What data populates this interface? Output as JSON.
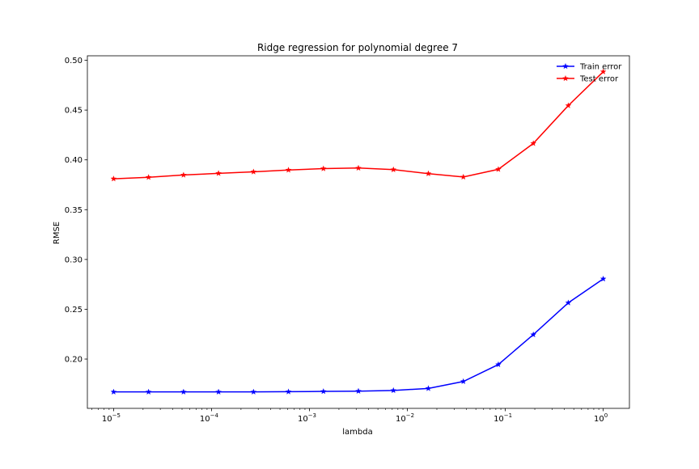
{
  "chart_data": {
    "type": "line",
    "title": "Ridge regression for polynomial degree 7",
    "xlabel": "lambda",
    "ylabel": "RMSE",
    "xscale": "log",
    "xlim": [
      5.4e-06,
      1.85
    ],
    "ylim": [
      0.1505,
      0.5045
    ],
    "grid": false,
    "legend_position": "top-right",
    "x_ticks": [
      {
        "value": 1e-05,
        "base": "10",
        "exp": "−5"
      },
      {
        "value": 0.0001,
        "base": "10",
        "exp": "−4"
      },
      {
        "value": 0.001,
        "base": "10",
        "exp": "−3"
      },
      {
        "value": 0.01,
        "base": "10",
        "exp": "−2"
      },
      {
        "value": 0.1,
        "base": "10",
        "exp": "−1"
      },
      {
        "value": 1,
        "base": "10",
        "exp": "0"
      }
    ],
    "y_ticks": [
      {
        "value": 0.2,
        "label": "0.20"
      },
      {
        "value": 0.25,
        "label": "0.25"
      },
      {
        "value": 0.3,
        "label": "0.30"
      },
      {
        "value": 0.35,
        "label": "0.35"
      },
      {
        "value": 0.4,
        "label": "0.40"
      },
      {
        "value": 0.45,
        "label": "0.45"
      },
      {
        "value": 0.5,
        "label": "0.50"
      }
    ],
    "x": [
      1e-05,
      2.276e-05,
      5.179e-05,
      0.0001179,
      0.0002683,
      0.0006105,
      0.001389,
      0.003162,
      0.007197,
      0.01638,
      0.03728,
      0.08483,
      0.1931,
      0.4394,
      1.0
    ],
    "series": [
      {
        "name": "Train error",
        "color": "#0000ff",
        "values": [
          0.167,
          0.167,
          0.167,
          0.167,
          0.167,
          0.1672,
          0.1675,
          0.1678,
          0.1685,
          0.1705,
          0.1775,
          0.1945,
          0.2245,
          0.2565,
          0.2805
        ]
      },
      {
        "name": "Test error",
        "color": "#ff0000",
        "values": [
          0.381,
          0.3825,
          0.3848,
          0.3865,
          0.388,
          0.3898,
          0.3912,
          0.3918,
          0.3902,
          0.3862,
          0.3828,
          0.3905,
          0.4165,
          0.4545,
          0.4885
        ]
      }
    ]
  }
}
